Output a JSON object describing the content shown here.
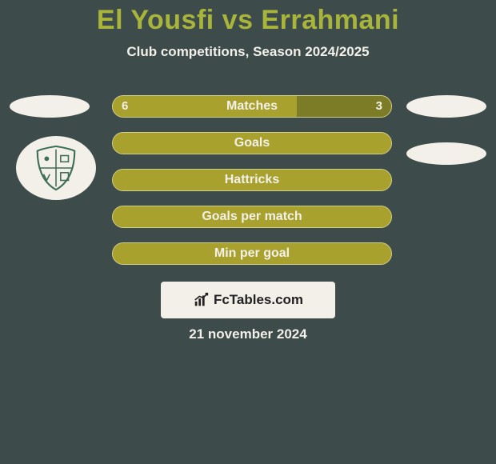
{
  "colors": {
    "page_bg": "#3d4b4b",
    "title_color": "#a9b43b",
    "text_color": "#f2f0e9",
    "bar_primary": "#a9a12e",
    "bar_secondary": "#7d7c26",
    "bar_border": "#d2cf88",
    "flag_bg": "#f2f0e9",
    "footer_bg": "#f2f0e9",
    "footer_text": "#222222",
    "crest_color": "#3f6e57"
  },
  "title": "El Yousfi vs Errahmani",
  "subtitle": "Club competitions, Season 2024/2025",
  "rows": [
    {
      "label": "Matches",
      "left_value": "6",
      "right_value": "3",
      "left_pct": 66,
      "right_pct": 34,
      "show_values": true,
      "show_flags": true
    },
    {
      "label": "Goals",
      "left_value": "",
      "right_value": "",
      "left_pct": 100,
      "right_pct": 0,
      "show_values": false,
      "show_flags": false
    },
    {
      "label": "Hattricks",
      "left_value": "",
      "right_value": "",
      "left_pct": 100,
      "right_pct": 0,
      "show_values": false,
      "show_flags": false
    },
    {
      "label": "Goals per match",
      "left_value": "",
      "right_value": "",
      "left_pct": 100,
      "right_pct": 0,
      "show_values": false,
      "show_flags": false
    },
    {
      "label": "Min per goal",
      "left_value": "",
      "right_value": "",
      "left_pct": 100,
      "right_pct": 0,
      "show_values": false,
      "show_flags": false
    }
  ],
  "footer_brand": "FcTables.com",
  "date_text": "21 november 2024"
}
